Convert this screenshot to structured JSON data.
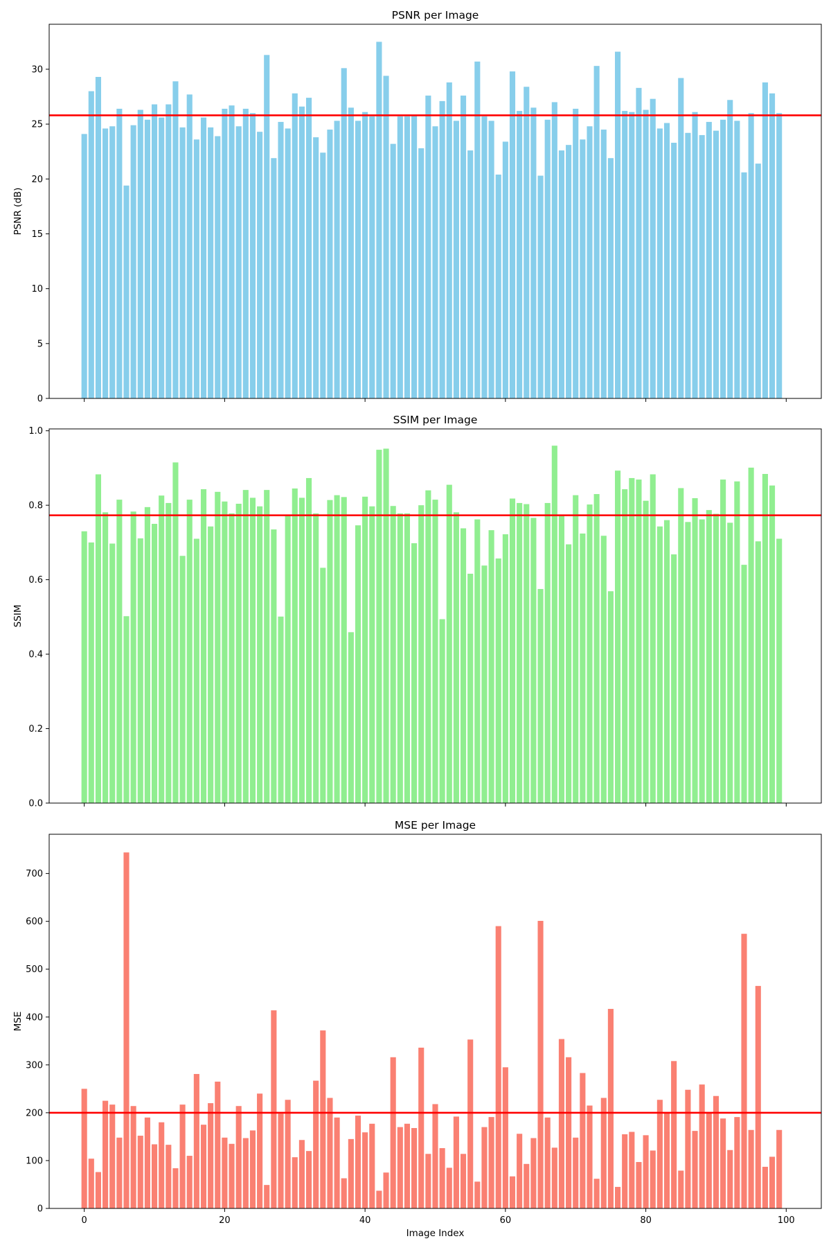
{
  "chart_data": [
    {
      "type": "bar",
      "title": "PSNR per Image",
      "xlabel": "",
      "ylabel": "PSNR (dB)",
      "color": "#87ceeb",
      "mean_line_color": "#ff0000",
      "mean": 25.8,
      "xlim": [
        -5,
        105
      ],
      "ylim": [
        0,
        34.1
      ],
      "x_ticks": [
        0,
        20,
        40,
        60,
        80,
        100
      ],
      "x_tick_labels_visible": false,
      "y_ticks": [
        0,
        5,
        10,
        15,
        20,
        25,
        30
      ],
      "grid": false,
      "x": [
        0,
        1,
        2,
        3,
        4,
        5,
        6,
        7,
        8,
        9,
        10,
        11,
        12,
        13,
        14,
        15,
        16,
        17,
        18,
        19,
        20,
        21,
        22,
        23,
        24,
        25,
        26,
        27,
        28,
        29,
        30,
        31,
        32,
        33,
        34,
        35,
        36,
        37,
        38,
        39,
        40,
        41,
        42,
        43,
        44,
        45,
        46,
        47,
        48,
        49,
        50,
        51,
        52,
        53,
        54,
        55,
        56,
        57,
        58,
        59,
        60,
        61,
        62,
        63,
        64,
        65,
        66,
        67,
        68,
        69,
        70,
        71,
        72,
        73,
        74,
        75,
        76,
        77,
        78,
        79,
        80,
        81,
        82,
        83,
        84,
        85,
        86,
        87,
        88,
        89,
        90,
        91,
        92,
        93,
        94,
        95,
        96,
        97,
        98,
        99
      ],
      "values": [
        24.1,
        28.0,
        29.3,
        24.6,
        24.8,
        26.4,
        19.4,
        24.9,
        26.3,
        25.4,
        26.8,
        25.6,
        26.8,
        28.9,
        24.7,
        27.7,
        23.6,
        25.6,
        24.7,
        23.9,
        26.4,
        26.7,
        24.8,
        26.4,
        26.0,
        24.3,
        31.3,
        21.9,
        25.2,
        24.6,
        27.8,
        26.6,
        27.4,
        23.8,
        22.4,
        24.5,
        25.3,
        30.1,
        26.5,
        25.3,
        26.1,
        25.7,
        32.5,
        29.4,
        23.2,
        25.7,
        25.7,
        25.8,
        22.8,
        27.6,
        24.8,
        27.1,
        28.8,
        25.3,
        27.6,
        22.6,
        30.7,
        25.7,
        25.3,
        20.4,
        23.4,
        29.8,
        26.2,
        28.4,
        26.5,
        20.3,
        25.4,
        27.0,
        22.6,
        23.1,
        26.4,
        23.6,
        24.8,
        30.3,
        24.5,
        21.9,
        31.6,
        26.2,
        26.1,
        28.3,
        26.3,
        27.3,
        24.6,
        25.1,
        23.3,
        29.2,
        24.2,
        26.1,
        24.0,
        25.2,
        24.4,
        25.4,
        27.2,
        25.3,
        20.6,
        26.0,
        21.4,
        28.8,
        27.8,
        26.0
      ]
    },
    {
      "type": "bar",
      "title": "SSIM per Image",
      "xlabel": "",
      "ylabel": "SSIM",
      "color": "#90ee90",
      "mean_line_color": "#ff0000",
      "mean": 0.773,
      "xlim": [
        -5,
        105
      ],
      "ylim": [
        0,
        1.005
      ],
      "x_ticks": [
        0,
        20,
        40,
        60,
        80,
        100
      ],
      "x_tick_labels_visible": false,
      "y_ticks": [
        0.0,
        0.2,
        0.4,
        0.6,
        0.8,
        1.0
      ],
      "grid": false,
      "x": [
        0,
        1,
        2,
        3,
        4,
        5,
        6,
        7,
        8,
        9,
        10,
        11,
        12,
        13,
        14,
        15,
        16,
        17,
        18,
        19,
        20,
        21,
        22,
        23,
        24,
        25,
        26,
        27,
        28,
        29,
        30,
        31,
        32,
        33,
        34,
        35,
        36,
        37,
        38,
        39,
        40,
        41,
        42,
        43,
        44,
        45,
        46,
        47,
        48,
        49,
        50,
        51,
        52,
        53,
        54,
        55,
        56,
        57,
        58,
        59,
        60,
        61,
        62,
        63,
        64,
        65,
        66,
        67,
        68,
        69,
        70,
        71,
        72,
        73,
        74,
        75,
        76,
        77,
        78,
        79,
        80,
        81,
        82,
        83,
        84,
        85,
        86,
        87,
        88,
        89,
        90,
        91,
        92,
        93,
        94,
        95,
        96,
        97,
        98,
        99
      ],
      "values": [
        0.73,
        0.7,
        0.883,
        0.781,
        0.697,
        0.815,
        0.502,
        0.783,
        0.711,
        0.795,
        0.75,
        0.826,
        0.806,
        0.915,
        0.664,
        0.815,
        0.71,
        0.843,
        0.743,
        0.836,
        0.81,
        0.778,
        0.804,
        0.841,
        0.82,
        0.797,
        0.841,
        0.735,
        0.501,
        0.775,
        0.845,
        0.82,
        0.873,
        0.778,
        0.632,
        0.814,
        0.827,
        0.822,
        0.459,
        0.746,
        0.823,
        0.797,
        0.949,
        0.952,
        0.798,
        0.778,
        0.778,
        0.698,
        0.8,
        0.84,
        0.815,
        0.494,
        0.855,
        0.781,
        0.738,
        0.616,
        0.762,
        0.638,
        0.733,
        0.657,
        0.722,
        0.818,
        0.806,
        0.803,
        0.766,
        0.575,
        0.806,
        0.96,
        0.775,
        0.695,
        0.827,
        0.724,
        0.802,
        0.83,
        0.718,
        0.569,
        0.893,
        0.843,
        0.873,
        0.869,
        0.812,
        0.883,
        0.743,
        0.76,
        0.668,
        0.846,
        0.755,
        0.819,
        0.762,
        0.787,
        0.777,
        0.869,
        0.753,
        0.864,
        0.64,
        0.901,
        0.703,
        0.884,
        0.853,
        0.71
      ]
    },
    {
      "type": "bar",
      "title": "MSE per Image",
      "xlabel": "Image Index",
      "ylabel": "MSE",
      "color": "#fa8072",
      "mean_line_color": "#ff0000",
      "mean": 200,
      "xlim": [
        -5,
        105
      ],
      "ylim": [
        0,
        782
      ],
      "x_ticks": [
        0,
        20,
        40,
        60,
        80,
        100
      ],
      "x_tick_labels_visible": true,
      "y_ticks": [
        0,
        100,
        200,
        300,
        400,
        500,
        600,
        700
      ],
      "grid": false,
      "x": [
        0,
        1,
        2,
        3,
        4,
        5,
        6,
        7,
        8,
        9,
        10,
        11,
        12,
        13,
        14,
        15,
        16,
        17,
        18,
        19,
        20,
        21,
        22,
        23,
        24,
        25,
        26,
        27,
        28,
        29,
        30,
        31,
        32,
        33,
        34,
        35,
        36,
        37,
        38,
        39,
        40,
        41,
        42,
        43,
        44,
        45,
        46,
        47,
        48,
        49,
        50,
        51,
        52,
        53,
        54,
        55,
        56,
        57,
        58,
        59,
        60,
        61,
        62,
        63,
        64,
        65,
        66,
        67,
        68,
        69,
        70,
        71,
        72,
        73,
        74,
        75,
        76,
        77,
        78,
        79,
        80,
        81,
        82,
        83,
        84,
        85,
        86,
        87,
        88,
        89,
        90,
        91,
        92,
        93,
        94,
        95,
        96,
        97,
        98,
        99
      ],
      "values": [
        250,
        104,
        76,
        225,
        217,
        148,
        744,
        214,
        152,
        190,
        134,
        180,
        133,
        84,
        217,
        110,
        281,
        175,
        220,
        265,
        148,
        135,
        214,
        147,
        163,
        240,
        49,
        414,
        198,
        227,
        107,
        143,
        120,
        267,
        372,
        231,
        190,
        63,
        145,
        194,
        159,
        177,
        37,
        75,
        316,
        170,
        177,
        168,
        336,
        114,
        218,
        126,
        85,
        192,
        114,
        353,
        56,
        170,
        191,
        590,
        295,
        67,
        156,
        93,
        147,
        601,
        190,
        127,
        354,
        316,
        148,
        283,
        215,
        62,
        231,
        417,
        45,
        155,
        160,
        97,
        153,
        121,
        227,
        200,
        308,
        79,
        248,
        162,
        259,
        200,
        235,
        188,
        122,
        191,
        574,
        164,
        465,
        87,
        108,
        164
      ]
    }
  ]
}
